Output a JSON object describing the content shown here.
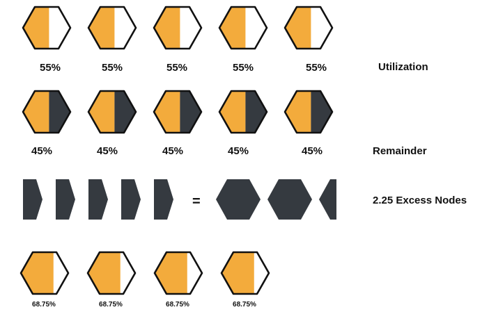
{
  "colors": {
    "fill": "#F3AB3C",
    "dark": "#353A40",
    "outline": "#111111",
    "empty": "#FFFFFF"
  },
  "rows": [
    {
      "label": "Utilization",
      "kind": "utilization",
      "fill_fraction": 0.55,
      "items": [
        "55%",
        "55%",
        "55%",
        "55%",
        "55%"
      ]
    },
    {
      "label": "Remainder",
      "kind": "remainder",
      "fill_fraction": 0.55,
      "remainder_fraction": 0.45,
      "items": [
        "45%",
        "45%",
        "45%",
        "45%",
        "45%"
      ]
    },
    {
      "label": "2.25 Excess Nodes",
      "kind": "excess",
      "equals_sign": "=",
      "pieces_count": 5,
      "result_nodes": 2.25
    },
    {
      "label": "",
      "kind": "result",
      "fill_fraction": 0.6875,
      "items": [
        "68.75%",
        "68.75%",
        "68.75%",
        "68.75%"
      ]
    }
  ]
}
